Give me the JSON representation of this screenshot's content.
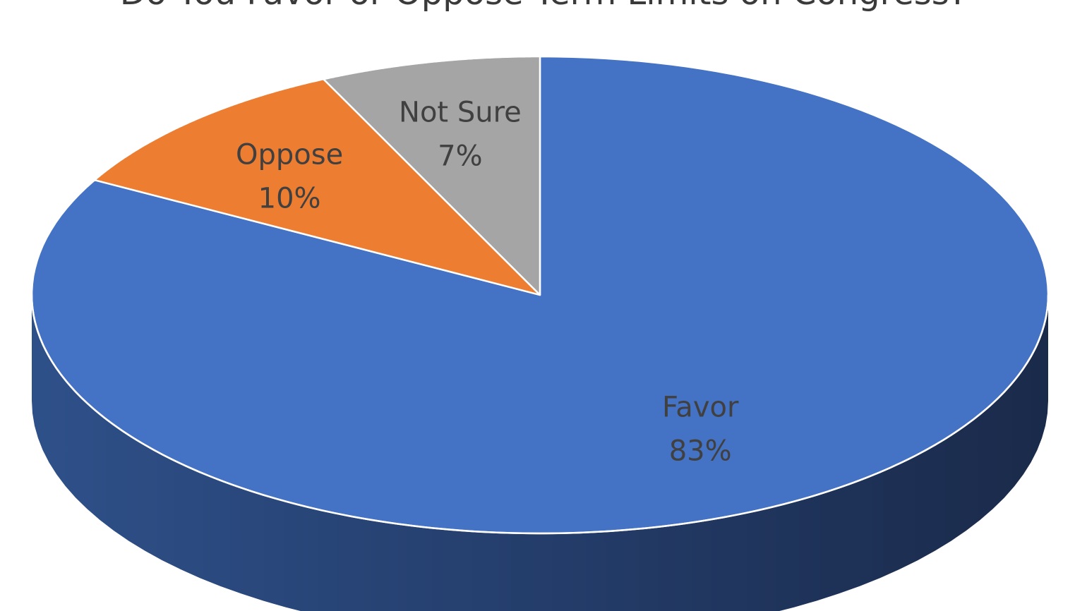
{
  "chart_data": {
    "type": "pie",
    "title": "Do You Favor or Oppose Term Limits on Congress?",
    "three_d": true,
    "start_position": "top-center",
    "direction": "clockwise",
    "slices": [
      {
        "name": "Favor",
        "value": 83,
        "label": "83%",
        "color": "#4472C4",
        "side_color": "#2F4F89"
      },
      {
        "name": "Oppose",
        "value": 10,
        "label": "10%",
        "color": "#ED7D31",
        "side_color": "#A35622"
      },
      {
        "name": "Not Sure",
        "value": 7,
        "label": "7%",
        "color": "#A5A5A5",
        "side_color": "#707070"
      }
    ],
    "legend": false,
    "data_labels": "inside"
  }
}
